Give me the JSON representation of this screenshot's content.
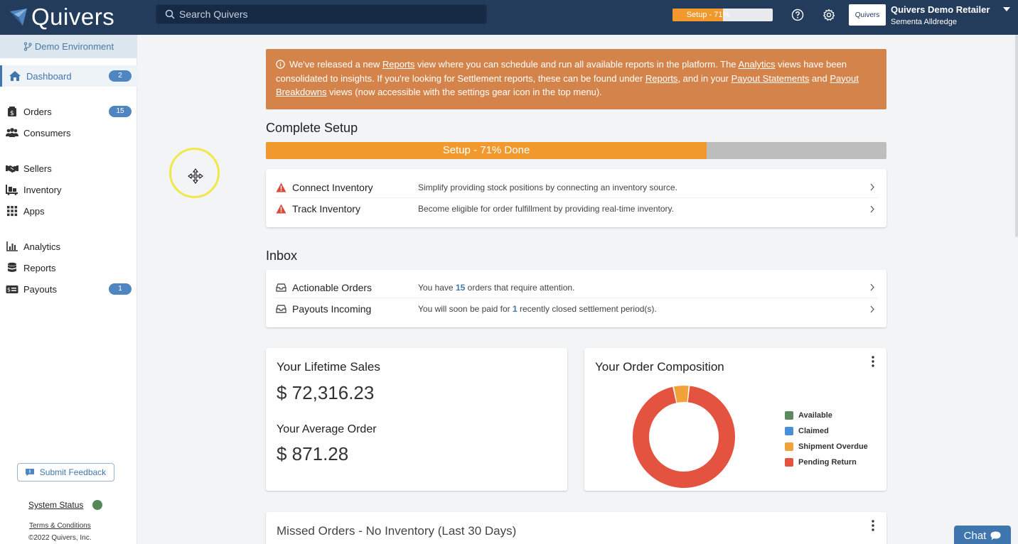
{
  "topbar": {
    "brand": "Quivers",
    "search_placeholder": "Search Quivers",
    "setup_label": "Setup - 71%",
    "setup_progress": 0.71,
    "account_logo_text": "Quivers",
    "account_name": "Quivers Demo Retailer",
    "account_user": "Sementa Alldredge",
    "icons": [
      "help-icon",
      "gear-icon",
      "caret-down-icon"
    ]
  },
  "sidebar": {
    "environment": "Demo Environment",
    "items": [
      {
        "label": "Dashboard",
        "badge": "2",
        "icon": "home-icon"
      },
      {
        "label": "Orders",
        "badge": "15",
        "icon": "orders-icon"
      },
      {
        "label": "Consumers",
        "badge": "",
        "icon": "users-icon"
      },
      {
        "label": "Sellers",
        "badge": "",
        "icon": "handshake-icon"
      },
      {
        "label": "Inventory",
        "badge": "",
        "icon": "inventory-icon"
      },
      {
        "label": "Apps",
        "badge": "",
        "icon": "grid-icon"
      },
      {
        "label": "Analytics",
        "badge": "",
        "icon": "bar-chart-icon"
      },
      {
        "label": "Reports",
        "badge": "",
        "icon": "database-icon"
      },
      {
        "label": "Payouts",
        "badge": "1",
        "icon": "money-icon"
      }
    ],
    "feedback_label": "Submit Feedback",
    "system_status_label": "System Status",
    "system_status_color": "#558a58",
    "terms_label": "Terms & Conditions",
    "copyright": "©2022 Quivers, Inc."
  },
  "notice": {
    "t1": "We've released a new ",
    "link_reports": "Reports",
    "t2": " view where you can schedule and run all available reports in the platform. The ",
    "link_analytics": "Analytics",
    "t3": " views have been consolidated to insights. If you're looking for Settlement reports, these can be found under ",
    "link_reports2": "Reports",
    "t4": ", and in your ",
    "link_payout_statements": "Payout Statements",
    "t5": " and ",
    "link_payout_breakdowns": "Payout Breakdowns",
    "t6": " views (now accessible with the settings gear icon in the top menu)."
  },
  "setup": {
    "title": "Complete Setup",
    "bar_label": "Setup - 71% Done",
    "progress": 0.71,
    "rows": [
      {
        "label": "Connect Inventory",
        "desc": "Simplify providing stock positions by connecting an inventory source."
      },
      {
        "label": "Track Inventory",
        "desc": "Become eligible for order fulfillment by providing real-time inventory."
      }
    ]
  },
  "inbox": {
    "title": "Inbox",
    "rows": [
      {
        "label": "Actionable Orders",
        "desc_pre": "You have ",
        "desc_num": "15",
        "desc_post": " orders that require attention."
      },
      {
        "label": "Payouts Incoming",
        "desc_pre": "You will soon be paid for ",
        "desc_num": "1",
        "desc_post": " recently closed settlement period(s)."
      }
    ]
  },
  "sales": {
    "lifetime_title": "Your Lifetime Sales",
    "lifetime_value": "$ 72,316.23",
    "average_title": "Your Average Order",
    "average_value": "$ 871.28"
  },
  "composition": {
    "title": "Your Order Composition"
  },
  "chart_data": {
    "type": "pie",
    "categories": [
      "Available",
      "Claimed",
      "Shipment Overdue",
      "Pending Return"
    ],
    "values": [
      0,
      0,
      5,
      95
    ],
    "colors": [
      "#5a8a5d",
      "#4a90d9",
      "#f2a23a",
      "#e4533f"
    ],
    "legend": "right"
  },
  "missed": {
    "title": "Missed Orders - No Inventory (Last 30 Days)"
  },
  "chat": {
    "label": "Chat"
  }
}
